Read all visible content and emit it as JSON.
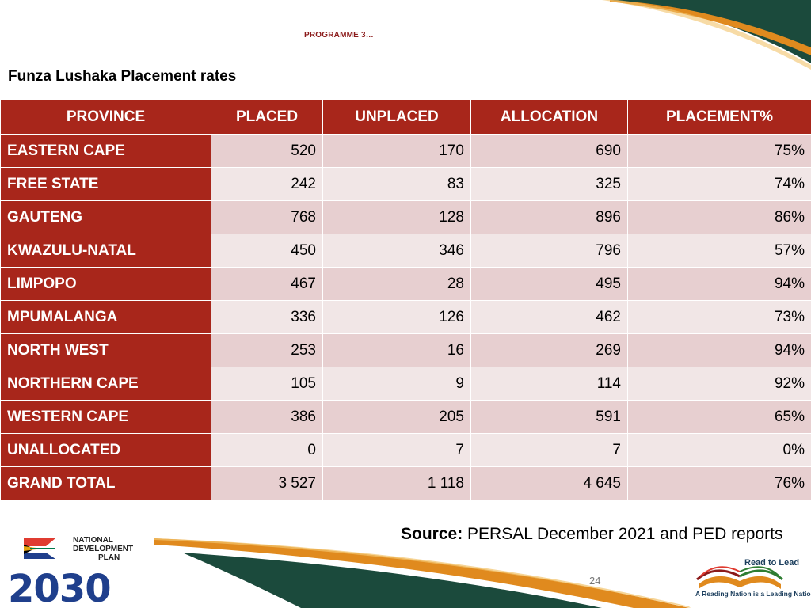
{
  "header": {
    "programme_label": "PROGRAMME 3…",
    "subtitle": "Funza Lushaka Placement rates"
  },
  "table": {
    "headers": [
      "PROVINCE",
      "PLACED",
      "UNPLACED",
      "ALLOCATION",
      "PLACEMENT%"
    ],
    "rows": [
      [
        "EASTERN CAPE",
        "520",
        "170",
        "690",
        "75%"
      ],
      [
        "FREE STATE",
        "242",
        "83",
        "325",
        "74%"
      ],
      [
        "GAUTENG",
        "768",
        "128",
        "896",
        "86%"
      ],
      [
        "KWAZULU-NATAL",
        "450",
        "346",
        "796",
        "57%"
      ],
      [
        "LIMPOPO",
        "467",
        "28",
        "495",
        "94%"
      ],
      [
        "MPUMALANGA",
        "336",
        "126",
        "462",
        "73%"
      ],
      [
        "NORTH WEST",
        "253",
        "16",
        "269",
        "94%"
      ],
      [
        "NORTHERN CAPE",
        "105",
        "9",
        "114",
        "92%"
      ],
      [
        "WESTERN CAPE",
        "386",
        "205",
        "591",
        "65%"
      ],
      [
        "UNALLOCATED",
        "0",
        "7",
        "7",
        "0%"
      ],
      [
        "GRAND TOTAL",
        "3 527",
        "1 118",
        "4 645",
        "76%"
      ]
    ]
  },
  "footer": {
    "source_label": "Source:",
    "source_text": "PERSAL December 2021 and PED reports",
    "page_number": "24",
    "ndp_logo_text": [
      "NATIONAL",
      "DEVELOPMENT",
      "PLAN",
      "2030"
    ],
    "rtl_title": "Read to Lead",
    "rtl_tagline": "A Reading Nation is a Leading Nation"
  },
  "colors": {
    "header_red": "#a8261b",
    "row_pink_dark": "#e7cfd0",
    "row_pink_light": "#f1e6e6",
    "accent_orange": "#e08a1e",
    "accent_green": "#1b4a3c",
    "ndp_blue": "#1f3f8c"
  },
  "icons": [
    "ndp-2030-logo-icon",
    "read-to-lead-book-icon"
  ]
}
